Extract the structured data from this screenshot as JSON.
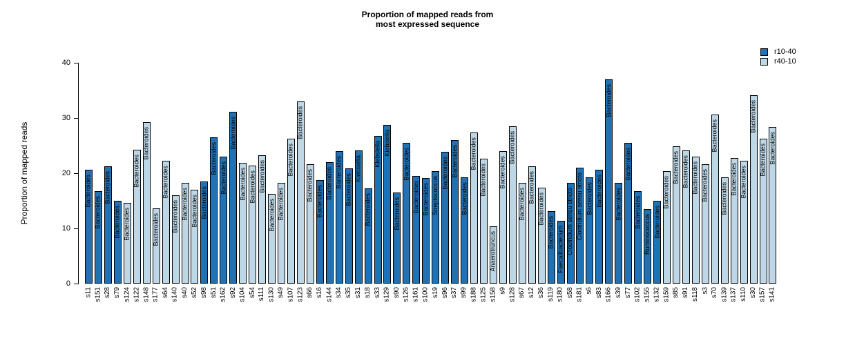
{
  "title": {
    "line1": "Proportion of mapped reads from",
    "line2": "most expressed sequence"
  },
  "y_axis": {
    "label": "Proportion of mapped reads",
    "ticks": [
      0,
      10,
      20,
      30,
      40
    ]
  },
  "legend": {
    "items": [
      {
        "label": "r10-40",
        "color": "#2171B5"
      },
      {
        "label": "r40-10",
        "color": "#BDD7E7"
      }
    ]
  },
  "chart_data": {
    "type": "bar",
    "title": "Proportion of mapped reads from most expressed sequence",
    "xlabel": "",
    "ylabel": "Proportion of mapped reads",
    "ylim": [
      0,
      40
    ],
    "grid": false,
    "legend_position": "top-right",
    "series_colors": {
      "r10-40": "#2171B5",
      "r40-10": "#BDD7E7"
    },
    "bar_border_color": "#000000",
    "bars": [
      {
        "sample": "s11",
        "taxon": "Bacteroides",
        "value": 20.6,
        "group": "r10-40"
      },
      {
        "sample": "s151",
        "taxon": "Bacteroides",
        "value": 16.7,
        "group": "r10-40"
      },
      {
        "sample": "s28",
        "taxon": "Bacteroides",
        "value": 21.2,
        "group": "r10-40"
      },
      {
        "sample": "s79",
        "taxon": "Bacteroides",
        "value": 15.0,
        "group": "r10-40"
      },
      {
        "sample": "s124",
        "taxon": "Bacteroides",
        "value": 14.6,
        "group": "r40-10"
      },
      {
        "sample": "s122",
        "taxon": "Bacteroides",
        "value": 24.2,
        "group": "r40-10"
      },
      {
        "sample": "s148",
        "taxon": "Bacteroides",
        "value": 29.2,
        "group": "r40-10"
      },
      {
        "sample": "s177",
        "taxon": "Bacteroides",
        "value": 13.6,
        "group": "r40-10"
      },
      {
        "sample": "s64",
        "taxon": "Bacteroides",
        "value": 22.3,
        "group": "r40-10"
      },
      {
        "sample": "s140",
        "taxon": "Bacteroides",
        "value": 16.0,
        "group": "r40-10"
      },
      {
        "sample": "s40",
        "taxon": "Bacteroides",
        "value": 18.2,
        "group": "r40-10"
      },
      {
        "sample": "s52",
        "taxon": "Bacteroides",
        "value": 17.0,
        "group": "r40-10"
      },
      {
        "sample": "s98",
        "taxon": "Bacteroides",
        "value": 18.5,
        "group": "r10-40"
      },
      {
        "sample": "s51",
        "taxon": "Bacteroides",
        "value": 26.5,
        "group": "r10-40"
      },
      {
        "sample": "s162",
        "taxon": "Bacteroides",
        "value": 23.0,
        "group": "r10-40"
      },
      {
        "sample": "s92",
        "taxon": "Bacteroides",
        "value": 31.1,
        "group": "r10-40"
      },
      {
        "sample": "s104",
        "taxon": "Bacteroides",
        "value": 21.9,
        "group": "r40-10"
      },
      {
        "sample": "s54",
        "taxon": "Bacteroides",
        "value": 21.4,
        "group": "r40-10"
      },
      {
        "sample": "s111",
        "taxon": "Bacteroides",
        "value": 23.3,
        "group": "r40-10"
      },
      {
        "sample": "s130",
        "taxon": "Bacteroides",
        "value": 16.3,
        "group": "r40-10"
      },
      {
        "sample": "s49",
        "taxon": "Bacteroides",
        "value": 18.2,
        "group": "r40-10"
      },
      {
        "sample": "s107",
        "taxon": "Bacteroides",
        "value": 26.3,
        "group": "r40-10"
      },
      {
        "sample": "s123",
        "taxon": "Bacteroides",
        "value": 33.0,
        "group": "r40-10"
      },
      {
        "sample": "s66",
        "taxon": "Bacteroides",
        "value": 21.6,
        "group": "r40-10"
      },
      {
        "sample": "s16",
        "taxon": "Bacteroides",
        "value": 18.8,
        "group": "r10-40"
      },
      {
        "sample": "s144",
        "taxon": "Bacteroides",
        "value": 22.0,
        "group": "r10-40"
      },
      {
        "sample": "s34",
        "taxon": "Bacteroides",
        "value": 24.0,
        "group": "r10-40"
      },
      {
        "sample": "s35",
        "taxon": "Bacteroides",
        "value": 20.9,
        "group": "r10-40"
      },
      {
        "sample": "s31",
        "taxon": "Klebsiella",
        "value": 24.1,
        "group": "r10-40"
      },
      {
        "sample": "s18",
        "taxon": "Bacteroides",
        "value": 17.2,
        "group": "r10-40"
      },
      {
        "sample": "s33",
        "taxon": "Klebsiella",
        "value": 26.8,
        "group": "r10-40"
      },
      {
        "sample": "s129",
        "taxon": "Klebsiella",
        "value": 28.7,
        "group": "r10-40"
      },
      {
        "sample": "s90",
        "taxon": "Bacteroides",
        "value": 16.5,
        "group": "r10-40"
      },
      {
        "sample": "s126",
        "taxon": "Bacteroides",
        "value": 25.5,
        "group": "r10-40"
      },
      {
        "sample": "s161",
        "taxon": "Bacteroides",
        "value": 19.5,
        "group": "r10-40"
      },
      {
        "sample": "s100",
        "taxon": "Bacteroides",
        "value": 19.1,
        "group": "r10-40"
      },
      {
        "sample": "s19",
        "taxon": "Streptococcus",
        "value": 20.4,
        "group": "r10-40"
      },
      {
        "sample": "s96",
        "taxon": "Bacteroides",
        "value": 23.9,
        "group": "r10-40"
      },
      {
        "sample": "s37",
        "taxon": "Bacteroides",
        "value": 26.0,
        "group": "r10-40"
      },
      {
        "sample": "s99",
        "taxon": "Bacteroides",
        "value": 19.3,
        "group": "r10-40"
      },
      {
        "sample": "s188",
        "taxon": "Bacteroides",
        "value": 27.4,
        "group": "r40-10"
      },
      {
        "sample": "s125",
        "taxon": "Bacteroides",
        "value": 22.6,
        "group": "r40-10"
      },
      {
        "sample": "s158",
        "taxon": "Anaerotruncus",
        "value": 10.4,
        "group": "r40-10"
      },
      {
        "sample": "s9",
        "taxon": "Bacteroides",
        "value": 24.0,
        "group": "r40-10"
      },
      {
        "sample": "s128",
        "taxon": "Bacteroides",
        "value": 28.5,
        "group": "r40-10"
      },
      {
        "sample": "s67",
        "taxon": "Bacteroides",
        "value": 18.2,
        "group": "r40-10"
      },
      {
        "sample": "s12",
        "taxon": "Bacteroides",
        "value": 21.2,
        "group": "r40-10"
      },
      {
        "sample": "s36",
        "taxon": "Bacteroides",
        "value": 17.4,
        "group": "r40-10"
      },
      {
        "sample": "s119",
        "taxon": "Bacteroides",
        "value": 13.1,
        "group": "r10-40"
      },
      {
        "sample": "s180",
        "taxon": "Faecalibacterium",
        "value": 11.4,
        "group": "r10-40"
      },
      {
        "sample": "s58",
        "taxon": "Clostridium sensu stricto",
        "value": 18.3,
        "group": "r10-40"
      },
      {
        "sample": "s181",
        "taxon": "Clostridium sensu stricto",
        "value": 21.0,
        "group": "r10-40"
      },
      {
        "sample": "s6",
        "taxon": "Bacteroides",
        "value": 19.3,
        "group": "r10-40"
      },
      {
        "sample": "s83",
        "taxon": "Bacteroides",
        "value": 20.6,
        "group": "r10-40"
      },
      {
        "sample": "s166",
        "taxon": "Bacteroides",
        "value": 37.0,
        "group": "r10-40"
      },
      {
        "sample": "s39",
        "taxon": "Bacteroides",
        "value": 18.3,
        "group": "r10-40"
      },
      {
        "sample": "s77",
        "taxon": "Bacteroides",
        "value": 25.5,
        "group": "r10-40"
      },
      {
        "sample": "s102",
        "taxon": "Bacteroides",
        "value": 16.7,
        "group": "r10-40"
      },
      {
        "sample": "s155",
        "taxon": "Ruminococcus",
        "value": 13.5,
        "group": "r10-40"
      },
      {
        "sample": "s132",
        "taxon": "Bacteroides",
        "value": 15.0,
        "group": "r10-40"
      },
      {
        "sample": "s159",
        "taxon": "Bacteroides",
        "value": 20.4,
        "group": "r40-10"
      },
      {
        "sample": "s85",
        "taxon": "Bacteroides",
        "value": 24.9,
        "group": "r40-10"
      },
      {
        "sample": "s91",
        "taxon": "Bacteroides",
        "value": 24.1,
        "group": "r40-10"
      },
      {
        "sample": "s118",
        "taxon": "Bacteroides",
        "value": 23.0,
        "group": "r40-10"
      },
      {
        "sample": "s3",
        "taxon": "Bacteroides",
        "value": 21.6,
        "group": "r40-10"
      },
      {
        "sample": "s70",
        "taxon": "Bacteroides",
        "value": 30.6,
        "group": "r40-10"
      },
      {
        "sample": "s139",
        "taxon": "Bacteroides",
        "value": 19.3,
        "group": "r40-10"
      },
      {
        "sample": "s137",
        "taxon": "Bacteroides",
        "value": 22.8,
        "group": "r40-10"
      },
      {
        "sample": "s110",
        "taxon": "Bacteroides",
        "value": 22.3,
        "group": "r40-10"
      },
      {
        "sample": "s30",
        "taxon": "Bacteroides",
        "value": 34.1,
        "group": "r40-10"
      },
      {
        "sample": "s157",
        "taxon": "Bacteroides",
        "value": 26.3,
        "group": "r40-10"
      },
      {
        "sample": "s141",
        "taxon": "Bacteroides",
        "value": 28.4,
        "group": "r40-10"
      }
    ]
  }
}
